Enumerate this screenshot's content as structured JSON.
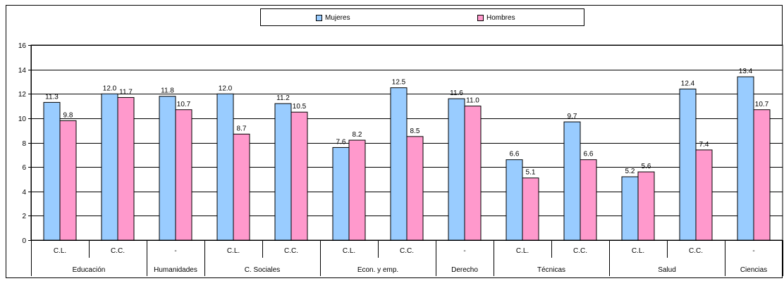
{
  "chart_data": {
    "type": "bar",
    "groups": [
      {
        "label": "Educación",
        "subs": [
          "C.L.",
          "C.C."
        ]
      },
      {
        "label": "Humanidades",
        "subs": [
          "-"
        ]
      },
      {
        "label": "C. Sociales",
        "subs": [
          "C.L.",
          "C.C."
        ]
      },
      {
        "label": "Econ. y emp.",
        "subs": [
          "C.L.",
          "C.C."
        ]
      },
      {
        "label": "Derecho",
        "subs": [
          "-"
        ]
      },
      {
        "label": "Técnicas",
        "subs": [
          "C.L.",
          "C.C."
        ]
      },
      {
        "label": "Salud",
        "subs": [
          "C.L.",
          "C.C."
        ]
      },
      {
        "label": "Ciencias",
        "subs": [
          "-"
        ]
      }
    ],
    "series": [
      {
        "name": "Mujeres",
        "color": "#99ccff",
        "values": [
          11.3,
          12.0,
          11.8,
          12.0,
          11.2,
          7.6,
          12.5,
          11.6,
          6.6,
          9.7,
          5.2,
          12.4,
          13.4
        ]
      },
      {
        "name": "Hombres",
        "color": "#ff99cc",
        "values": [
          9.8,
          11.7,
          10.7,
          8.7,
          10.5,
          8.2,
          8.5,
          11.0,
          5.1,
          6.6,
          5.6,
          7.4,
          10.7
        ]
      }
    ],
    "value_labels": {
      "Mujeres": [
        "11.3",
        "12.0",
        "11.8",
        "12.0",
        "11.2",
        "7.6",
        "12.5",
        "11.6",
        "6.6",
        "9.7",
        "5.2",
        "12.4",
        "13.4"
      ],
      "Hombres": [
        "9.8",
        "11.7",
        "10.7",
        "8.7",
        "10.5",
        "8.2",
        "8.5",
        "11.0",
        "5.1",
        "6.6",
        "5.6",
        "7.4",
        "10.7"
      ]
    },
    "ylim": [
      0,
      16
    ],
    "yticks": [
      "0",
      "2",
      "4",
      "6",
      "8",
      "10",
      "12",
      "14",
      "16"
    ],
    "grid": true,
    "legend_position": "top-center"
  }
}
